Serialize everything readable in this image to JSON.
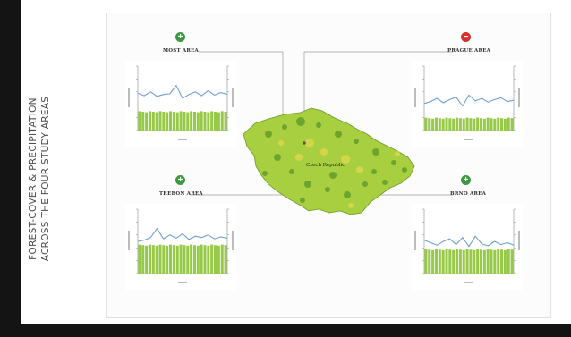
{
  "title_lines": [
    "FOREST-COVER & PRECIPITATION",
    "ACROSS THE FOUR STUDY AREAS"
  ],
  "map": {
    "label": "Czech Republic",
    "icon": "czech-republic-map"
  },
  "areas": [
    {
      "id": "most",
      "name": "MOST AREA",
      "status": "positive",
      "symbol": "+"
    },
    {
      "id": "prague",
      "name": "PRAGUE AREA",
      "status": "negative",
      "symbol": "−"
    },
    {
      "id": "trebon",
      "name": "TREBON AREA",
      "status": "positive",
      "symbol": "+"
    },
    {
      "id": "brno",
      "name": "BRNO AREA",
      "status": "positive",
      "symbol": "+"
    }
  ],
  "colors": {
    "positive": "#3a9a3d",
    "negative": "#d8302c",
    "precip_line": "#6f9fd6",
    "forest_bars": "#97c948",
    "map_fill": "#a7cf3f"
  }
}
